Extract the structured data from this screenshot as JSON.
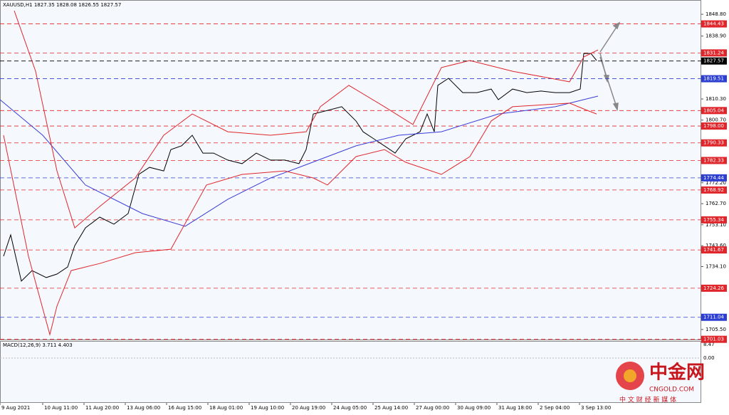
{
  "chart_data": {
    "type": "line",
    "title": "XAUUSD,H1  1827.35 1828.08 1826.55 1827.57",
    "indicator_label": "MACD(12,26,9) 3.711 4.403",
    "macd_ticks": [
      "8.47",
      "0.00"
    ],
    "watermark": {
      "name": "中金网",
      "site": "CNGOLD.COM",
      "slogan": "中 文 财 经 新 媒 体"
    },
    "xlim": [
      0,
      492.5
    ],
    "ylim": [
      1700.6,
      1855.3
    ],
    "xticks": [
      {
        "value": 0,
        "label": "9 Aug 2021"
      },
      {
        "value": 30,
        "label": "10 Aug 11:00"
      },
      {
        "value": 59,
        "label": "11 Aug 20:00"
      },
      {
        "value": 88,
        "label": "13 Aug 06:00"
      },
      {
        "value": 117,
        "label": "16 Aug 15:00"
      },
      {
        "value": 146,
        "label": "18 Aug 01:00"
      },
      {
        "value": 175,
        "label": "19 Aug 10:00"
      },
      {
        "value": 204,
        "label": "20 Aug 19:00"
      },
      {
        "value": 233,
        "label": "24 Aug 05:00"
      },
      {
        "value": 262,
        "label": "25 Aug 14:00"
      },
      {
        "value": 291,
        "label": "27 Aug 00:00"
      },
      {
        "value": 320,
        "label": "30 Aug 09:00"
      },
      {
        "value": 349,
        "label": "31 Aug 18:00"
      },
      {
        "value": 378,
        "label": "2 Sep 04:00"
      },
      {
        "value": 407,
        "label": "3 Sep 13:00"
      }
    ],
    "yticks": [
      {
        "value": 1848.8,
        "label": "1848.80"
      },
      {
        "value": 1838.9,
        "label": "1838.90"
      },
      {
        "value": 1810.3,
        "label": "1810.30"
      },
      {
        "value": 1800.7,
        "label": "1800.70"
      },
      {
        "value": 1772.2,
        "label": "1772.20"
      },
      {
        "value": 1762.7,
        "label": "1762.70"
      },
      {
        "value": 1753.1,
        "label": "1753.10"
      },
      {
        "value": 1743.6,
        "label": "1743.60"
      },
      {
        "value": 1734.1,
        "label": "1734.10"
      },
      {
        "value": 1705.5,
        "label": "1705.50"
      }
    ],
    "levels": [
      {
        "value": 1844.43,
        "color": "#e0262b"
      },
      {
        "value": 1831.24,
        "color": "#e0262b"
      },
      {
        "value": 1827.57,
        "color": "#000000"
      },
      {
        "value": 1819.51,
        "color": "#2d3fd1"
      },
      {
        "value": 1805.04,
        "color": "#e0262b"
      },
      {
        "value": {
          "value": 1798,
          "label": "1798.00"
        },
        "color": "#e0262b"
      },
      {
        "value": 1790.33,
        "color": "#e0262b"
      },
      {
        "value": 1782.33,
        "color": "#e0262b"
      },
      {
        "value": 1774.44,
        "color": "#2d3fd1"
      },
      {
        "value": 1768.92,
        "color": "#e0262b"
      },
      {
        "value": 1755.34,
        "color": "#e0262b"
      },
      {
        "value": 1741.67,
        "color": "#e0262b"
      },
      {
        "value": 1724.26,
        "color": "#e0262b"
      },
      {
        "value": 1711.04,
        "color": "#2d3fd1"
      },
      {
        "value": 1701.03,
        "color": "#e0262b"
      }
    ],
    "series": [
      {
        "color": "#000000",
        "x": [
          2.5,
          7.5,
          15,
          22.5,
          32.5,
          40,
          47.5,
          52.5,
          60,
          70,
          80,
          90,
          97.5,
          105,
          115,
          120,
          127.5,
          135,
          142.5,
          150,
          160,
          170,
          180,
          190,
          200,
          210,
          215,
          220,
          230,
          240,
          250,
          255,
          262.5,
          270,
          277.5,
          285,
          295,
          300,
          305,
          307.5,
          315,
          325,
          335,
          345,
          350,
          360,
          370,
          380,
          390,
          400,
          407.5,
          410,
          415,
          419
        ],
        "values": [
          1738.8,
          1748.5,
          1727.5,
          1732.3,
          1729.1,
          1730.7,
          1733.9,
          1743.6,
          1751.7,
          1756.6,
          1753.4,
          1758.2,
          1776.0,
          1779.2,
          1777.6,
          1787.3,
          1789.0,
          1793.8,
          1785.7,
          1785.7,
          1782.5,
          1780.9,
          1785.7,
          1782.5,
          1782.5,
          1780.9,
          1787.3,
          1803.5,
          1805.1,
          1806.8,
          1800.3,
          1795.4,
          1792.2,
          1789.0,
          1785.7,
          1792.2,
          1795.4,
          1803.5,
          1795.4,
          1816.5,
          1819.7,
          1813.2,
          1813.2,
          1814.8,
          1810.0,
          1814.8,
          1813.2,
          1813.9,
          1813.2,
          1813.2,
          1814.8,
          1831.0,
          1831.0,
          1827.8
        ]
      },
      {
        "color": "#3b3bd6",
        "x": [
          0,
          30,
          60,
          100,
          130,
          160,
          190,
          210,
          250,
          280,
          310,
          350,
          390,
          420
        ],
        "values": [
          1810.0,
          1793.8,
          1771.2,
          1758.2,
          1752.4,
          1764.7,
          1774.4,
          1779.2,
          1789.0,
          1793.8,
          1795.4,
          1803.5,
          1806.8,
          1811.6
        ]
      },
      {
        "color": "#e0262b",
        "x": [
          10,
          25,
          40,
          52.5,
          70,
          95,
          115,
          135,
          160,
          190,
          215,
          225,
          245,
          270,
          290,
          310,
          330,
          360,
          400,
          410,
          420
        ],
        "values": [
          1850.4,
          1822.9,
          1777.6,
          1751.7,
          1761.4,
          1774.4,
          1793.8,
          1803.5,
          1795.4,
          1793.8,
          1795.4,
          1806.8,
          1816.5,
          1806.8,
          1798.7,
          1824.6,
          1827.8,
          1822.9,
          1818.1,
          1829.4,
          1832.6
        ]
      },
      {
        "color": "#e0262b",
        "x": [
          2.5,
          20,
          35,
          40,
          50,
          70,
          95,
          120,
          145,
          170,
          200,
          220,
          230,
          250,
          270,
          285,
          310,
          330,
          345,
          360,
          400,
          412.5,
          419
        ],
        "values": [
          1793.8,
          1738.8,
          1703.2,
          1716.1,
          1732.3,
          1735.5,
          1740.4,
          1742.0,
          1771.2,
          1776.0,
          1777.6,
          1774.4,
          1771.2,
          1784.1,
          1787.3,
          1781.5,
          1776.0,
          1784.1,
          1800.3,
          1806.8,
          1808.4,
          1805.1,
          1803.5
        ]
      }
    ]
  }
}
